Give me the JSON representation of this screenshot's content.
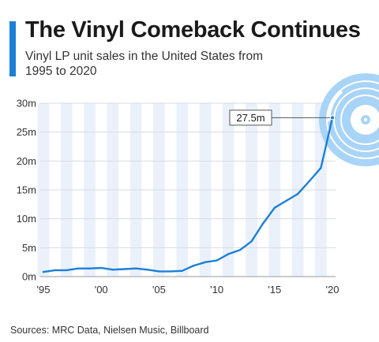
{
  "header": {
    "title": "The Vinyl Comeback Continues",
    "subtitle": "Vinyl LP unit sales in the United States from 1995 to 2020"
  },
  "footer": {
    "source": "Sources: MRC Data, Nielsen Music, Billboard"
  },
  "colors": {
    "accent": "#1c7fd8",
    "line": "#1c7fd8",
    "band": "#eaf1fb",
    "record": "#a8d4f7"
  },
  "chart_data": {
    "type": "line",
    "title": "The Vinyl Comeback Continues",
    "subtitle": "Vinyl LP unit sales in the United States from 1995 to 2020",
    "x": [
      1995,
      1996,
      1997,
      1998,
      1999,
      2000,
      2001,
      2002,
      2003,
      2004,
      2005,
      2006,
      2007,
      2008,
      2009,
      2010,
      2011,
      2012,
      2013,
      2014,
      2015,
      2016,
      2017,
      2018,
      2019,
      2020
    ],
    "series": [
      {
        "values": [
          0.8,
          1.1,
          1.1,
          1.4,
          1.4,
          1.5,
          1.2,
          1.3,
          1.4,
          1.2,
          0.9,
          0.9,
          1.0,
          1.9,
          2.5,
          2.8,
          3.9,
          4.6,
          6.1,
          9.2,
          11.9,
          13.1,
          14.3,
          16.5,
          18.8,
          27.5
        ]
      }
    ],
    "x_tick_labels": [
      "'95",
      "'00",
      "'05",
      "'10",
      "'15",
      "'20"
    ],
    "x_tick_values": [
      1995,
      2000,
      2005,
      2010,
      2015,
      2020
    ],
    "y_tick_labels": [
      "0m",
      "5m",
      "10m",
      "15m",
      "20m",
      "25m",
      "30m"
    ],
    "y_tick_values": [
      0,
      5,
      10,
      15,
      20,
      25,
      30
    ],
    "ylim": [
      0,
      30
    ],
    "xlim": [
      1995,
      2020
    ],
    "unit": "million units",
    "grid": true,
    "background": "alternating yearly bands",
    "callout": {
      "year": 2020,
      "label": "27.5m"
    },
    "decoration": "vinyl-record-icon"
  }
}
